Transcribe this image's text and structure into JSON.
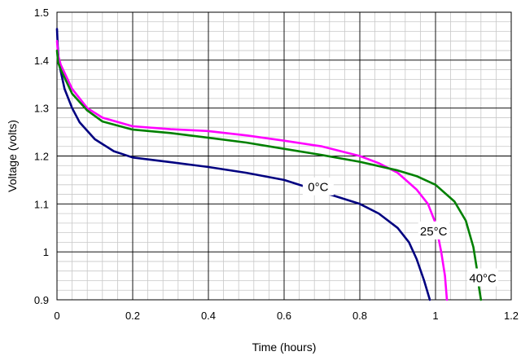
{
  "chart_data": {
    "type": "line",
    "xlabel": "Time (hours)",
    "ylabel": "Voltage (volts)",
    "xlim": [
      0,
      1.2
    ],
    "ylim": [
      0.9,
      1.5
    ],
    "x_ticks": [
      "0",
      "0.2",
      "0.4",
      "0.6",
      "0.8",
      "1",
      "1.2"
    ],
    "y_ticks": [
      "0.9",
      "1",
      "1.1",
      "1.2",
      "1.3",
      "1.4",
      "1.5"
    ],
    "x_tick_values": [
      0,
      0.2,
      0.4,
      0.6,
      0.8,
      1.0,
      1.2
    ],
    "y_tick_values": [
      0.9,
      1.0,
      1.1,
      1.2,
      1.3,
      1.4,
      1.5
    ],
    "minor_x_step": 0.04,
    "minor_y_step": 0.02,
    "grid": true,
    "series": [
      {
        "name": "0°C",
        "color": "#000080",
        "points": [
          [
            0,
            1.465
          ],
          [
            0.002,
            1.43
          ],
          [
            0.005,
            1.395
          ],
          [
            0.02,
            1.34
          ],
          [
            0.04,
            1.3
          ],
          [
            0.06,
            1.27
          ],
          [
            0.1,
            1.235
          ],
          [
            0.15,
            1.21
          ],
          [
            0.2,
            1.197
          ],
          [
            0.3,
            1.187
          ],
          [
            0.4,
            1.177
          ],
          [
            0.5,
            1.165
          ],
          [
            0.6,
            1.15
          ],
          [
            0.7,
            1.125
          ],
          [
            0.8,
            1.1
          ],
          [
            0.85,
            1.08
          ],
          [
            0.9,
            1.05
          ],
          [
            0.93,
            1.02
          ],
          [
            0.95,
            0.985
          ],
          [
            0.97,
            0.94
          ],
          [
            0.985,
            0.9
          ]
        ]
      },
      {
        "name": "25°C",
        "color": "#ff00ff",
        "points": [
          [
            0,
            1.44
          ],
          [
            0.003,
            1.41
          ],
          [
            0.01,
            1.39
          ],
          [
            0.04,
            1.34
          ],
          [
            0.08,
            1.3
          ],
          [
            0.12,
            1.28
          ],
          [
            0.2,
            1.262
          ],
          [
            0.3,
            1.256
          ],
          [
            0.4,
            1.252
          ],
          [
            0.5,
            1.243
          ],
          [
            0.6,
            1.232
          ],
          [
            0.7,
            1.22
          ],
          [
            0.8,
            1.2
          ],
          [
            0.85,
            1.185
          ],
          [
            0.9,
            1.165
          ],
          [
            0.95,
            1.13
          ],
          [
            0.98,
            1.1
          ],
          [
            1.0,
            1.06
          ],
          [
            1.015,
            1.0
          ],
          [
            1.025,
            0.95
          ],
          [
            1.03,
            0.9
          ]
        ]
      },
      {
        "name": "40°C",
        "color": "#008000",
        "points": [
          [
            0,
            1.42
          ],
          [
            0.003,
            1.395
          ],
          [
            0.01,
            1.38
          ],
          [
            0.04,
            1.33
          ],
          [
            0.08,
            1.295
          ],
          [
            0.12,
            1.272
          ],
          [
            0.2,
            1.255
          ],
          [
            0.3,
            1.248
          ],
          [
            0.4,
            1.238
          ],
          [
            0.5,
            1.228
          ],
          [
            0.6,
            1.215
          ],
          [
            0.7,
            1.202
          ],
          [
            0.8,
            1.188
          ],
          [
            0.9,
            1.17
          ],
          [
            0.95,
            1.158
          ],
          [
            1.0,
            1.14
          ],
          [
            1.05,
            1.105
          ],
          [
            1.08,
            1.065
          ],
          [
            1.1,
            1.01
          ],
          [
            1.11,
            0.96
          ],
          [
            1.115,
            0.925
          ],
          [
            1.12,
            0.9
          ]
        ]
      }
    ]
  }
}
